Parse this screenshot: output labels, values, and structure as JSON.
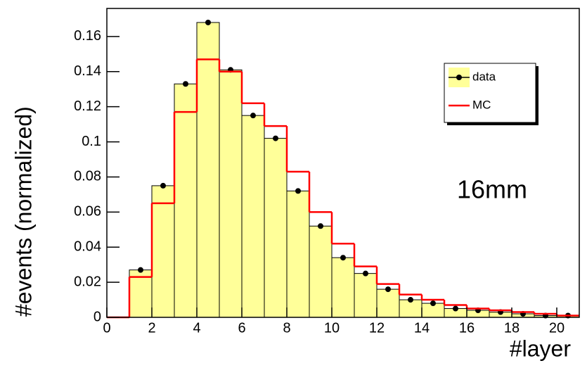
{
  "chart_data": {
    "type": "histogram",
    "xlabel": "#layer",
    "ylabel": "#events (normalized)",
    "annotation": "16mm",
    "bins": [
      0,
      1,
      2,
      3,
      4,
      5,
      6,
      7,
      8,
      9,
      10,
      11,
      12,
      13,
      14,
      15,
      16,
      17,
      18,
      19,
      20,
      21
    ],
    "series": [
      {
        "name": "data",
        "color": "#000000",
        "fill": "#ffff99",
        "values": [
          0,
          0.027,
          0.075,
          0.133,
          0.168,
          0.141,
          0.115,
          0.102,
          0.072,
          0.052,
          0.034,
          0.025,
          0.016,
          0.01,
          0.008,
          0.005,
          0.004,
          0.003,
          0.002,
          0.001,
          0.001
        ]
      },
      {
        "name": "MC",
        "color": "#ff0000",
        "values": [
          0,
          0.023,
          0.065,
          0.117,
          0.147,
          0.14,
          0.122,
          0.109,
          0.083,
          0.06,
          0.042,
          0.029,
          0.019,
          0.013,
          0.01,
          0.007,
          0.005,
          0.004,
          0.003,
          0.002,
          0.001
        ]
      }
    ],
    "xlim": [
      0,
      21
    ],
    "xticks": [
      0,
      2,
      4,
      6,
      8,
      10,
      12,
      14,
      16,
      18,
      20
    ],
    "ylim": [
      0,
      0.176
    ],
    "yticks": [
      0,
      0.02,
      0.04,
      0.06,
      0.08,
      0.1,
      0.12,
      0.14,
      0.16
    ],
    "legend": "upper-right"
  }
}
